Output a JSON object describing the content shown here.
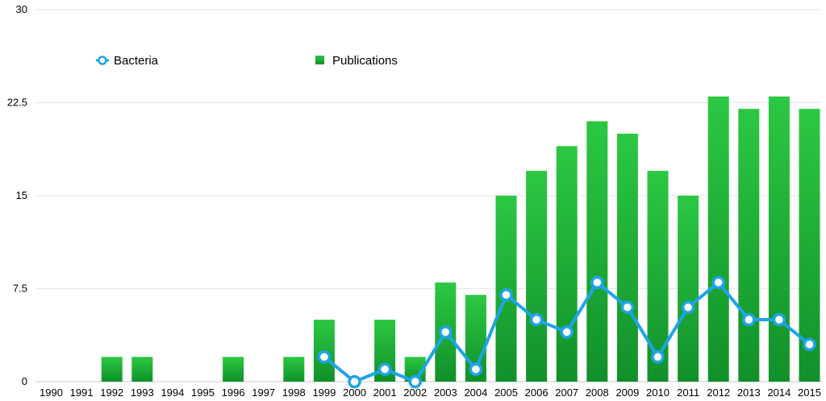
{
  "chart_data": {
    "type": "bar",
    "categories": [
      "1990",
      "1991",
      "1992",
      "1993",
      "1994",
      "1995",
      "1996",
      "1997",
      "1998",
      "1999",
      "2000",
      "2001",
      "2002",
      "2003",
      "2004",
      "2005",
      "2006",
      "2007",
      "2008",
      "2009",
      "2010",
      "2011",
      "2012",
      "2013",
      "2014",
      "2015"
    ],
    "series": [
      {
        "name": "Publications",
        "type": "bar",
        "color": "#22b438",
        "values": [
          0,
          0,
          2,
          2,
          0,
          0,
          2,
          0,
          2,
          5,
          0,
          5,
          2,
          8,
          7,
          15,
          17,
          19,
          21,
          20,
          17,
          15,
          23,
          22,
          23,
          22
        ]
      },
      {
        "name": "Bacteria",
        "type": "line",
        "color": "#1ea4ea",
        "values": [
          null,
          null,
          null,
          null,
          null,
          null,
          null,
          null,
          null,
          2,
          0,
          1,
          0,
          4,
          1,
          7,
          5,
          4,
          8,
          6,
          2,
          6,
          8,
          5,
          5,
          3
        ]
      }
    ],
    "yticks": [
      "0",
      "7.5",
      "15",
      "22.5",
      "30"
    ],
    "ylim": [
      0,
      30
    ],
    "grid": true,
    "legend_placement": "top-left"
  }
}
